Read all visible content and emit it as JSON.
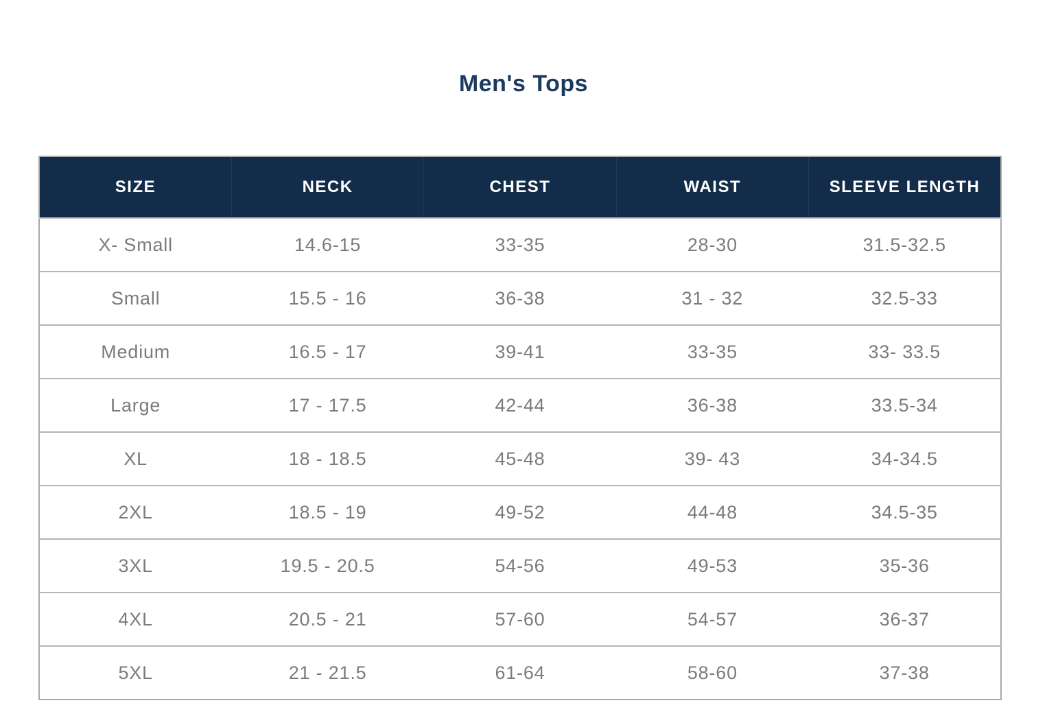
{
  "page": {
    "title": "Men's Tops",
    "background": "#ffffff"
  },
  "colors": {
    "title_text": "#1b3a5e",
    "header_background": "#122c4a",
    "header_text": "#ffffff",
    "cell_text": "#7b7b7d",
    "outer_border": "#a8a8a8",
    "row_divider": "#b5b5b5"
  },
  "chart_data": {
    "type": "table",
    "title": "Men's Tops",
    "columns": [
      "SIZE",
      "NECK",
      "CHEST",
      "WAIST",
      "SLEEVE LENGTH"
    ],
    "rows": [
      [
        "X- Small",
        "14.6-15",
        "33-35",
        "28-30",
        "31.5-32.5"
      ],
      [
        "Small",
        "15.5 - 16",
        "36-38",
        "31 - 32",
        "32.5-33"
      ],
      [
        "Medium",
        "16.5 - 17",
        "39-41",
        "33-35",
        "33- 33.5"
      ],
      [
        "Large",
        "17 - 17.5",
        "42-44",
        "36-38",
        "33.5-34"
      ],
      [
        "XL",
        "18 - 18.5",
        "45-48",
        "39- 43",
        "34-34.5"
      ],
      [
        "2XL",
        "18.5 - 19",
        "49-52",
        "44-48",
        "34.5-35"
      ],
      [
        "3XL",
        "19.5 - 20.5",
        "54-56",
        "49-53",
        "35-36"
      ],
      [
        "4XL",
        "20.5 - 21",
        "57-60",
        "54-57",
        "36-37"
      ],
      [
        "5XL",
        "21 - 21.5",
        "61-64",
        "58-60",
        "37-38"
      ]
    ]
  }
}
